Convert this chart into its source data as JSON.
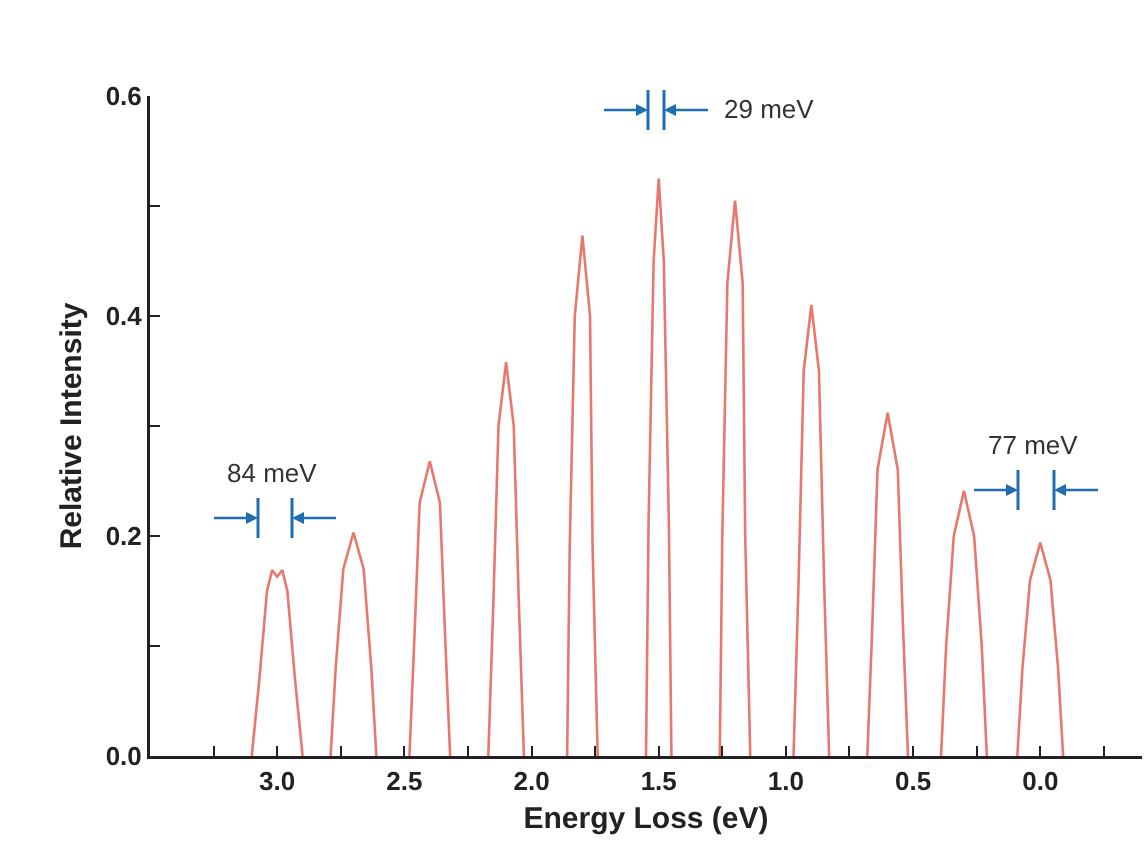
{
  "chart_data": {
    "type": "line",
    "xlabel": "Energy Loss (eV)",
    "ylabel": "Relative Intensity",
    "x": [
      3.1,
      3.07,
      3.04,
      3.02,
      3.0,
      2.98,
      2.96,
      2.93,
      2.9,
      null,
      2.79,
      2.77,
      2.74,
      2.7,
      2.66,
      2.63,
      2.61,
      null,
      2.48,
      2.46,
      2.44,
      2.4,
      2.36,
      2.34,
      2.32,
      null,
      2.17,
      2.15,
      2.13,
      2.1,
      2.07,
      2.05,
      2.03,
      null,
      1.86,
      1.85,
      1.83,
      1.8,
      1.77,
      1.76,
      1.74,
      null,
      1.55,
      1.54,
      1.52,
      1.5,
      1.48,
      1.46,
      1.45,
      null,
      1.26,
      1.25,
      1.23,
      1.2,
      1.17,
      1.16,
      1.14,
      null,
      0.97,
      0.95,
      0.93,
      0.9,
      0.87,
      0.85,
      0.83,
      null,
      0.68,
      0.66,
      0.64,
      0.6,
      0.56,
      0.54,
      0.52,
      null,
      0.39,
      0.37,
      0.34,
      0.3,
      0.26,
      0.23,
      0.21,
      null,
      0.09,
      0.07,
      0.04,
      0.0,
      -0.04,
      -0.07,
      -0.09
    ],
    "series": [
      {
        "color": "#e8776e",
        "values": [
          0,
          0.07,
          0.15,
          0.169,
          0.163,
          0.169,
          0.15,
          0.07,
          0,
          null,
          0,
          0.08,
          0.17,
          0.203,
          0.17,
          0.08,
          0,
          null,
          0,
          0.11,
          0.23,
          0.268,
          0.23,
          0.11,
          0,
          null,
          0,
          0.14,
          0.3,
          0.358,
          0.3,
          0.14,
          0,
          null,
          0,
          0.19,
          0.4,
          0.473,
          0.4,
          0.19,
          0,
          null,
          0,
          0.21,
          0.45,
          0.525,
          0.45,
          0.21,
          0,
          null,
          0,
          0.2,
          0.43,
          0.505,
          0.43,
          0.2,
          0,
          null,
          0,
          0.16,
          0.35,
          0.41,
          0.35,
          0.16,
          0,
          null,
          0,
          0.12,
          0.26,
          0.312,
          0.26,
          0.12,
          0,
          null,
          0,
          0.1,
          0.2,
          0.241,
          0.2,
          0.1,
          0,
          null,
          0,
          0.08,
          0.16,
          0.194,
          0.16,
          0.08,
          0
        ]
      }
    ],
    "xlim": [
      3.5,
      -0.4
    ],
    "xticks": [
      {
        "value": 3.25,
        "label": null
      },
      {
        "value": 3,
        "label": "3.0"
      },
      {
        "value": 2.75,
        "label": null
      },
      2.5,
      {
        "value": 2.25,
        "label": null
      },
      {
        "value": 2,
        "label": "2.0"
      },
      {
        "value": 1.75,
        "label": null
      },
      1.5,
      {
        "value": 1.25,
        "label": null
      },
      {
        "value": 1,
        "label": "1.0"
      },
      {
        "value": 0.75,
        "label": null
      },
      0.5,
      {
        "value": 0.25,
        "label": null
      },
      {
        "value": 0,
        "label": "0.0"
      },
      {
        "value": -0.25,
        "label": null
      }
    ],
    "ylim": [
      0,
      0.6
    ],
    "yticks": [
      {
        "value": 0,
        "label": "0.0"
      },
      {
        "value": 0.1,
        "label": null
      },
      0.2,
      {
        "value": 0.3,
        "label": null
      },
      0.4,
      {
        "value": 0.5,
        "label": null
      },
      0.6
    ],
    "annotations": [
      "84 meV",
      "29 meV",
      "77 meV"
    ],
    "grid": false,
    "marker": "none",
    "line_style": "solid"
  }
}
